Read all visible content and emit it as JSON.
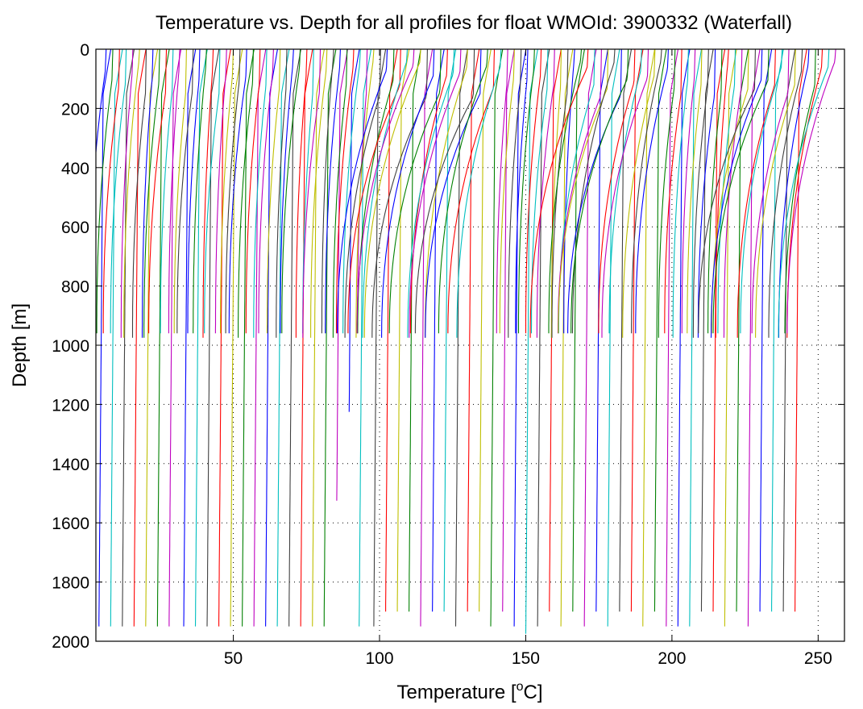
{
  "chart_data": {
    "type": "line",
    "title": "Temperature vs. Depth for all profiles for float WMOId: 3900332 (Waterfall)",
    "xlabel": "Temperature [",
    "xlabel_sup": "o",
    "xlabel_unit": "C]",
    "ylabel": "Depth [m]",
    "xlim": [
      3,
      259
    ],
    "ylim": [
      2000,
      0
    ],
    "y_reversed": true,
    "grid": true,
    "x_ticks": [
      50,
      100,
      150,
      200,
      250
    ],
    "y_ticks": [
      0,
      200,
      400,
      600,
      800,
      1000,
      1200,
      1400,
      1600,
      1800,
      2000
    ],
    "x_tick_labels": [
      "50",
      "100",
      "150",
      "200",
      "250"
    ],
    "y_tick_labels": [
      "0",
      "200",
      "400",
      "600",
      "800",
      "1000",
      "1200",
      "1400",
      "1600",
      "1800",
      "2000"
    ],
    "color_cycle": [
      "#0000ff",
      "#008000",
      "#ff0000",
      "#00bfbf",
      "#bf00bf",
      "#bfbf00",
      "#404040"
    ],
    "shallow_profiles": {
      "count": 110,
      "first_surface_temperature": 6.5,
      "last_surface_temperature": 256,
      "depth_range": [
        0,
        985
      ],
      "note_values": "each profile offset by ~2.3 degC (waterfall)"
    },
    "deep_profiles": {
      "temperatures_at_1900m": [
        4,
        8,
        12,
        16,
        20,
        24,
        28,
        33,
        37,
        41,
        45,
        49,
        53,
        57,
        61,
        65,
        69,
        73,
        77,
        81,
        85,
        89,
        93,
        98,
        102,
        106,
        110,
        114,
        118,
        122,
        126,
        130,
        134,
        138,
        142,
        146,
        150,
        154,
        158,
        162,
        166,
        170,
        174,
        178,
        182,
        186,
        190,
        194,
        198,
        202,
        206,
        210,
        214,
        218,
        222,
        226,
        230,
        234,
        238,
        242
      ],
      "bottom_depths": [
        1970,
        1970,
        1970,
        1970,
        1970,
        1970,
        1970,
        1970,
        1970,
        1970,
        1970,
        1970,
        1970,
        1970,
        1970,
        1970,
        1970,
        1970,
        1970,
        1970,
        1530,
        1235,
        1970,
        1970,
        1920,
        1920,
        1920,
        1970,
        1920,
        1920,
        1970,
        1920,
        1920,
        1970,
        1920,
        1970,
        1980,
        1970,
        1920,
        1970,
        1920,
        1970,
        1920,
        1970,
        1920,
        1920,
        1970,
        1920,
        1970,
        1970,
        1970,
        1920,
        1920,
        1970,
        1920,
        1970,
        1920,
        1920,
        1920,
        1920
      ]
    }
  }
}
